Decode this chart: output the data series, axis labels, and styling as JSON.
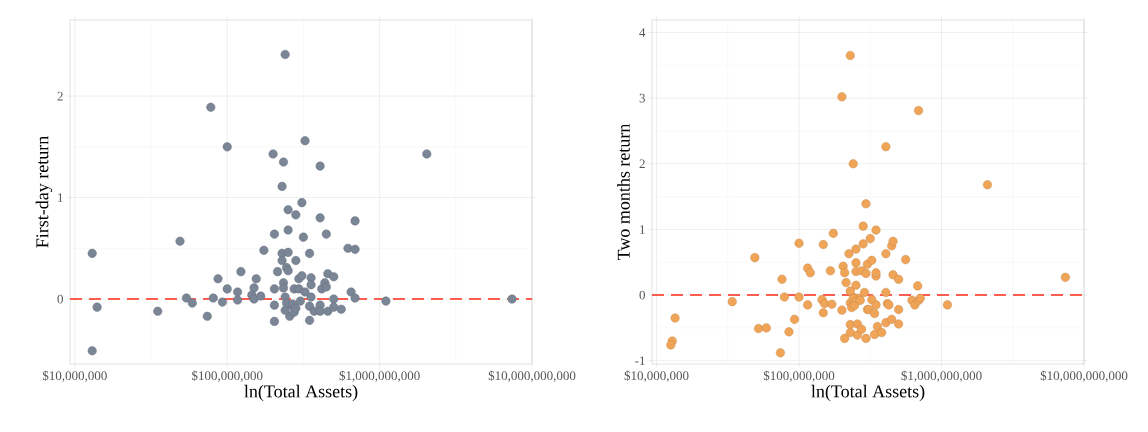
{
  "chart_data": [
    {
      "type": "scatter",
      "xlabel": "ln(Total Assets)",
      "ylabel": "First-day return",
      "log": "x",
      "grid": true,
      "marker": "circle",
      "color": "#7a8596",
      "xlim": [
        9300000.0,
        10000000000.0
      ],
      "ylim": [
        -0.64,
        2.75
      ],
      "xticks": [
        {
          "value": 10000000.0,
          "label": "$10,000,000"
        },
        {
          "value": 100000000.0,
          "label": "$100,000,000"
        },
        {
          "value": 1000000000.0,
          "label": "$1,000,000,000"
        },
        {
          "value": 10000000000.0,
          "label": "$10,000,000,000"
        }
      ],
      "yticks": [
        0,
        1,
        2
      ],
      "ref_lines": [
        {
          "axis": "y",
          "value": 0,
          "color": "#ff2a1a",
          "line_style": "dashed"
        }
      ],
      "x": [
        13000000.0,
        14000000.0,
        13000000.0,
        35000000.0,
        49000000.0,
        54000000.0,
        59000000.0,
        74000000.0,
        81000000.0,
        87000000.0,
        93000000.0,
        100000000.0,
        117000000.0,
        117000000.0,
        123000000.0,
        145000000.0,
        150000000.0,
        155000000.0,
        150000000.0,
        166000000.0,
        174000000.0,
        204000000.0,
        204000000.0,
        204000000.0,
        204000000.0,
        214000000.0,
        229000000.0,
        229000000.0,
        229000000.0,
        234000000.0,
        234000000.0,
        240000000.0,
        245000000.0,
        251000000.0,
        251000000.0,
        251000000.0,
        251000000.0,
        257000000.0,
        240000000.0,
        263000000.0,
        275000000.0,
        275000000.0,
        282000000.0,
        282000000.0,
        295000000.0,
        295000000.0,
        302000000.0,
        309000000.0,
        309000000.0,
        316000000.0,
        324000000.0,
        347000000.0,
        347000000.0,
        347000000.0,
        355000000.0,
        355000000.0,
        355000000.0,
        372000000.0,
        407000000.0,
        407000000.0,
        407000000.0,
        417000000.0,
        437000000.0,
        447000000.0,
        457000000.0,
        457000000.0,
        447000000.0,
        500000000.0,
        500000000.0,
        500000000.0,
        560000000.0,
        620000000.0,
        690000000.0,
        690000000.0,
        650000000.0,
        690000000.0,
        1100000000.0,
        7400000000.0,
        245000000.0,
        269000000.0,
        282000000.0,
        240000000.0,
        78000000.0,
        100000000.0,
        200000000.0,
        234000000.0,
        324000000.0,
        407000000.0,
        2040000000.0
      ],
      "values": [
        0.45,
        -0.08,
        -0.51,
        -0.12,
        0.57,
        0.01,
        -0.04,
        -0.17,
        0.01,
        0.2,
        -0.03,
        0.1,
        -0.01,
        0.07,
        0.27,
        0.04,
        0.11,
        0.2,
        0.0,
        0.03,
        0.48,
        -0.22,
        0.64,
        -0.06,
        0.1,
        0.27,
        0.45,
        0.38,
        1.11,
        0.16,
        0.11,
        0.02,
        0.31,
        0.28,
        0.88,
        0.68,
        0.46,
        -0.17,
        -0.11,
        -0.06,
        0.1,
        -0.13,
        0.38,
        0.83,
        0.1,
        0.2,
        -0.02,
        0.95,
        0.23,
        0.61,
        0.07,
        -0.07,
        0.45,
        -0.21,
        0.21,
        0.14,
        0.02,
        -0.12,
        0.8,
        -0.06,
        -0.12,
        0.1,
        0.16,
        0.64,
        -0.12,
        0.25,
        0.12,
        0.22,
        0.0,
        -0.08,
        -0.1,
        0.5,
        0.77,
        0.49,
        0.07,
        0.01,
        -0.02,
        0.0,
        -0.04,
        -0.05,
        -0.09,
        2.41,
        1.89,
        1.5,
        1.43,
        1.35,
        1.56,
        1.31,
        1.43
      ]
    },
    {
      "type": "scatter",
      "xlabel": "ln(Total Assets)",
      "ylabel": "Two months return",
      "log": "x",
      "grid": true,
      "marker": "circle",
      "color": "#f0a457",
      "xlim": [
        9300000.0,
        10000000000.0
      ],
      "ylim": [
        -1.05,
        4.19
      ],
      "xticks": [
        {
          "value": 10000000.0,
          "label": "$10,000,000"
        },
        {
          "value": 100000000.0,
          "label": "$100,000,000"
        },
        {
          "value": 1000000000.0,
          "label": "$1,000,000,000"
        },
        {
          "value": 10000000000.0,
          "label": "$10,000,000,000"
        }
      ],
      "yticks": [
        -1,
        0,
        1,
        2,
        3,
        4
      ],
      "ref_lines": [
        {
          "axis": "y",
          "value": 0,
          "color": "#ff2a1a",
          "line_style": "dashed"
        }
      ],
      "x": [
        13500000.0,
        12900000.0,
        12600000.0,
        34000000.0,
        49000000.0,
        52000000.0,
        59000000.0,
        74000000.0,
        76000000.0,
        79000000.0,
        85000000.0,
        93000000.0,
        100000000.0,
        100000000.0,
        115000000.0,
        115000000.0,
        120000000.0,
        145000000.0,
        148000000.0,
        151000000.0,
        148000000.0,
        166000000.0,
        170000000.0,
        174000000.0,
        200000000.0,
        204000000.0,
        209000000.0,
        209000000.0,
        214000000.0,
        224000000.0,
        229000000.0,
        229000000.0,
        229000000.0,
        229000000.0,
        234000000.0,
        245000000.0,
        251000000.0,
        251000000.0,
        251000000.0,
        251000000.0,
        257000000.0,
        257000000.0,
        263000000.0,
        275000000.0,
        275000000.0,
        282000000.0,
        282000000.0,
        288000000.0,
        295000000.0,
        295000000.0,
        295000000.0,
        302000000.0,
        302000000.0,
        309000000.0,
        316000000.0,
        324000000.0,
        324000000.0,
        339000000.0,
        339000000.0,
        347000000.0,
        347000000.0,
        347000000.0,
        347000000.0,
        355000000.0,
        380000000.0,
        407000000.0,
        407000000.0,
        407000000.0,
        417000000.0,
        427000000.0,
        447000000.0,
        457000000.0,
        457000000.0,
        447000000.0,
        500000000.0,
        500000000.0,
        500000000.0,
        560000000.0,
        620000000.0,
        650000000.0,
        680000000.0,
        690000000.0,
        710000000.0,
        1100000000.0,
        7400000000.0,
        240000000.0,
        251000000.0,
        245000000.0,
        269000000.0,
        229000000.0,
        200000000.0,
        690000000.0,
        407000000.0,
        240000000.0,
        2100000000.0
      ],
      "values": [
        -0.35,
        -0.7,
        -0.76,
        -0.1,
        0.57,
        -0.51,
        -0.5,
        -0.88,
        0.24,
        -0.03,
        -0.56,
        -0.37,
        0.79,
        -0.03,
        -0.15,
        0.41,
        0.34,
        -0.07,
        0.77,
        -0.13,
        -0.27,
        0.37,
        -0.14,
        0.94,
        -0.23,
        0.44,
        -0.66,
        0.34,
        0.19,
        0.63,
        0.06,
        -0.45,
        -0.57,
        -0.12,
        -0.19,
        -0.04,
        0.15,
        0.49,
        0.7,
        0.36,
        -0.61,
        -0.44,
        -0.05,
        -0.52,
        0.37,
        0.78,
        1.05,
        0.04,
        0.33,
        -0.66,
        1.39,
        -0.22,
        0.47,
        -0.22,
        0.86,
        0.53,
        -0.07,
        -0.28,
        -0.6,
        0.29,
        0.99,
        -0.15,
        0.34,
        -0.48,
        -0.57,
        0.04,
        0.63,
        -0.42,
        -0.13,
        -0.15,
        0.75,
        0.82,
        0.31,
        -0.37,
        -0.22,
        -0.44,
        0.24,
        0.54,
        -0.08,
        -0.15,
        0.14,
        -0.08,
        -0.05,
        -0.15,
        0.27,
        -0.05,
        -0.1,
        -0.16,
        -0.08,
        3.65,
        3.02,
        2.81,
        2.26,
        2.0,
        1.68
      ]
    }
  ]
}
